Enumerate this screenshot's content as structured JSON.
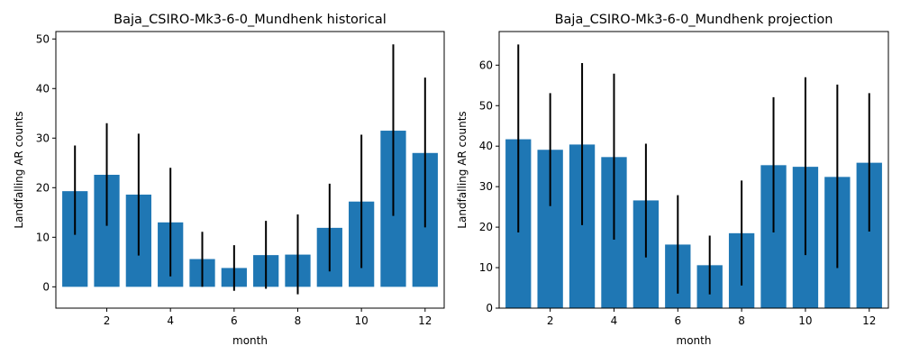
{
  "colors": {
    "bar": "#1f77b4",
    "error": "#000000",
    "axis": "#000000"
  },
  "chart_data": [
    {
      "type": "bar",
      "title": "Baja_CSIRO-Mk3-6-0_Mundhenk historical",
      "xlabel": "month",
      "ylabel": "Landfalling AR counts",
      "categories": [
        1,
        2,
        3,
        4,
        5,
        6,
        7,
        8,
        9,
        10,
        11,
        12
      ],
      "values": [
        19.3,
        22.6,
        18.6,
        13.0,
        5.6,
        3.8,
        6.4,
        6.5,
        11.9,
        17.2,
        31.5,
        27.0
      ],
      "error_low": [
        10.5,
        12.3,
        6.3,
        2.1,
        0.0,
        -0.8,
        -0.4,
        -1.5,
        3.1,
        3.8,
        14.3,
        12.0
      ],
      "error_high": [
        28.5,
        33.0,
        30.9,
        24.0,
        11.1,
        8.4,
        13.3,
        14.6,
        20.8,
        30.7,
        48.9,
        42.2
      ],
      "xlim": [
        0.4,
        12.6
      ],
      "ylim": [
        -4.3,
        51.5
      ],
      "xticks": [
        2,
        4,
        6,
        8,
        10,
        12
      ],
      "yticks": [
        0,
        10,
        20,
        30,
        40,
        50
      ],
      "grid": false
    },
    {
      "type": "bar",
      "title": "Baja_CSIRO-Mk3-6-0_Mundhenk projection",
      "xlabel": "month",
      "ylabel": "Landfalling AR counts",
      "categories": [
        1,
        2,
        3,
        4,
        5,
        6,
        7,
        8,
        9,
        10,
        11,
        12
      ],
      "values": [
        41.7,
        39.1,
        40.4,
        37.3,
        26.6,
        15.7,
        10.6,
        18.5,
        35.3,
        34.9,
        32.4,
        35.9
      ],
      "error_low": [
        18.7,
        25.2,
        20.5,
        16.9,
        12.5,
        3.6,
        3.4,
        5.6,
        18.7,
        13.1,
        9.9,
        18.9
      ],
      "error_high": [
        65.1,
        53.1,
        60.5,
        57.9,
        40.6,
        27.9,
        17.9,
        31.5,
        52.1,
        57.0,
        55.2,
        53.1
      ],
      "xlim": [
        0.4,
        12.6
      ],
      "ylim": [
        0,
        68.3
      ],
      "xticks": [
        2,
        4,
        6,
        8,
        10,
        12
      ],
      "yticks": [
        0,
        10,
        20,
        30,
        40,
        50,
        60
      ],
      "grid": false
    }
  ]
}
